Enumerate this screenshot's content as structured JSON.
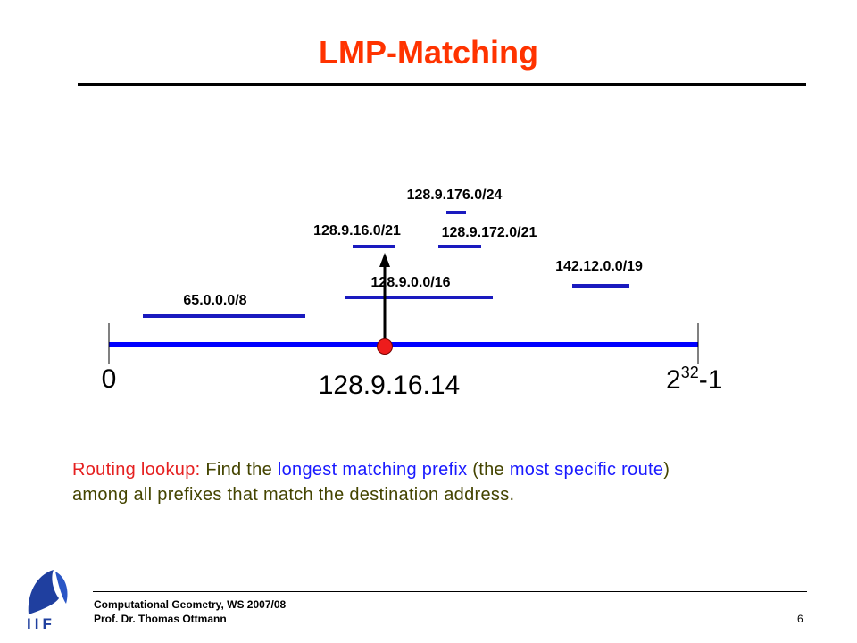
{
  "slide": {
    "title": "LMP-Matching",
    "page_number": "6"
  },
  "diagram": {
    "axis_start_label": "0",
    "axis_end_base": "2",
    "axis_end_exponent": "32",
    "axis_end_suffix": "-1",
    "destination_address": "128.9.16.14",
    "prefixes": [
      {
        "label": "65.0.0.0/8"
      },
      {
        "label": "128.9.0.0/16"
      },
      {
        "label": "128.9.16.0/21"
      },
      {
        "label": "128.9.172.0/21"
      },
      {
        "label": "128.9.176.0/24"
      },
      {
        "label": "142.12.0.0/19"
      }
    ],
    "colors": {
      "axis": "#0000ff",
      "prefix_bar": "#1a1abf",
      "point": "#ee1c1c",
      "arrow": "#000000"
    }
  },
  "description": {
    "part1": "Routing lookup:",
    "part2": " Find the ",
    "part3": "longest matching prefix",
    "part4": " (the ",
    "part5": "most specific route",
    "part6": ")",
    "line2": "among all prefixes that match the destination address."
  },
  "footer": {
    "line1": "Computational Geometry, WS 2007/08",
    "line2": "Prof. Dr. Thomas Ottmann",
    "logo_text": "IIF"
  }
}
